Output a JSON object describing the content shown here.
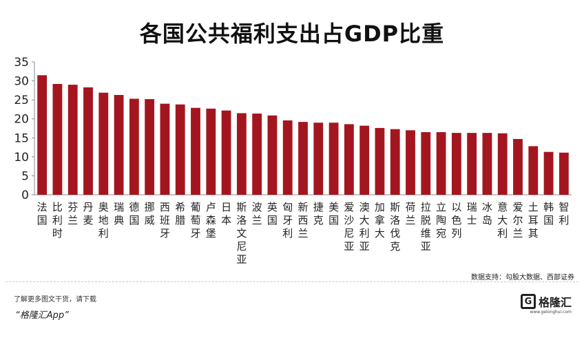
{
  "chart_data": {
    "type": "bar",
    "title": "各国公共福利支出占GDP比重",
    "categories": [
      "法国",
      "比利时",
      "芬兰",
      "丹麦",
      "奥地利",
      "瑞典",
      "德国",
      "挪威",
      "西班牙",
      "希腊",
      "葡萄牙",
      "卢森堡",
      "日本",
      "斯洛文尼亚",
      "波兰",
      "英国",
      "匈牙利",
      "新西兰",
      "捷克",
      "美国",
      "爱沙尼亚",
      "澳大利亚",
      "加拿大",
      "斯洛伐克",
      "荷兰",
      "拉脱维亚",
      "立陶宛",
      "以色列",
      "瑞士",
      "冰岛",
      "意大利",
      "爱尔兰",
      "土耳其",
      "韩国",
      "智利"
    ],
    "values": [
      31.5,
      29.2,
      29.0,
      28.3,
      26.9,
      26.3,
      25.3,
      25.2,
      24.0,
      23.8,
      22.9,
      22.7,
      22.2,
      21.5,
      21.4,
      20.9,
      19.6,
      19.2,
      19.0,
      19.0,
      18.6,
      18.2,
      17.6,
      17.3,
      17.0,
      16.5,
      16.5,
      16.3,
      16.3,
      16.3,
      16.2,
      14.7,
      12.8,
      11.3,
      11.1
    ],
    "ylim": [
      0,
      35
    ],
    "yticks": [
      0,
      5,
      10,
      15,
      20,
      25,
      30,
      35
    ],
    "bar_color": "#a4161f"
  },
  "source": "数据支持：勾股大数据、西部证券",
  "footer": {
    "promo": "了解更多图文干货，请下载",
    "app": "“格隆汇App”",
    "logo_mark": "G",
    "logo_text": "格隆汇",
    "logo_url": "www.gelonghui.com"
  }
}
